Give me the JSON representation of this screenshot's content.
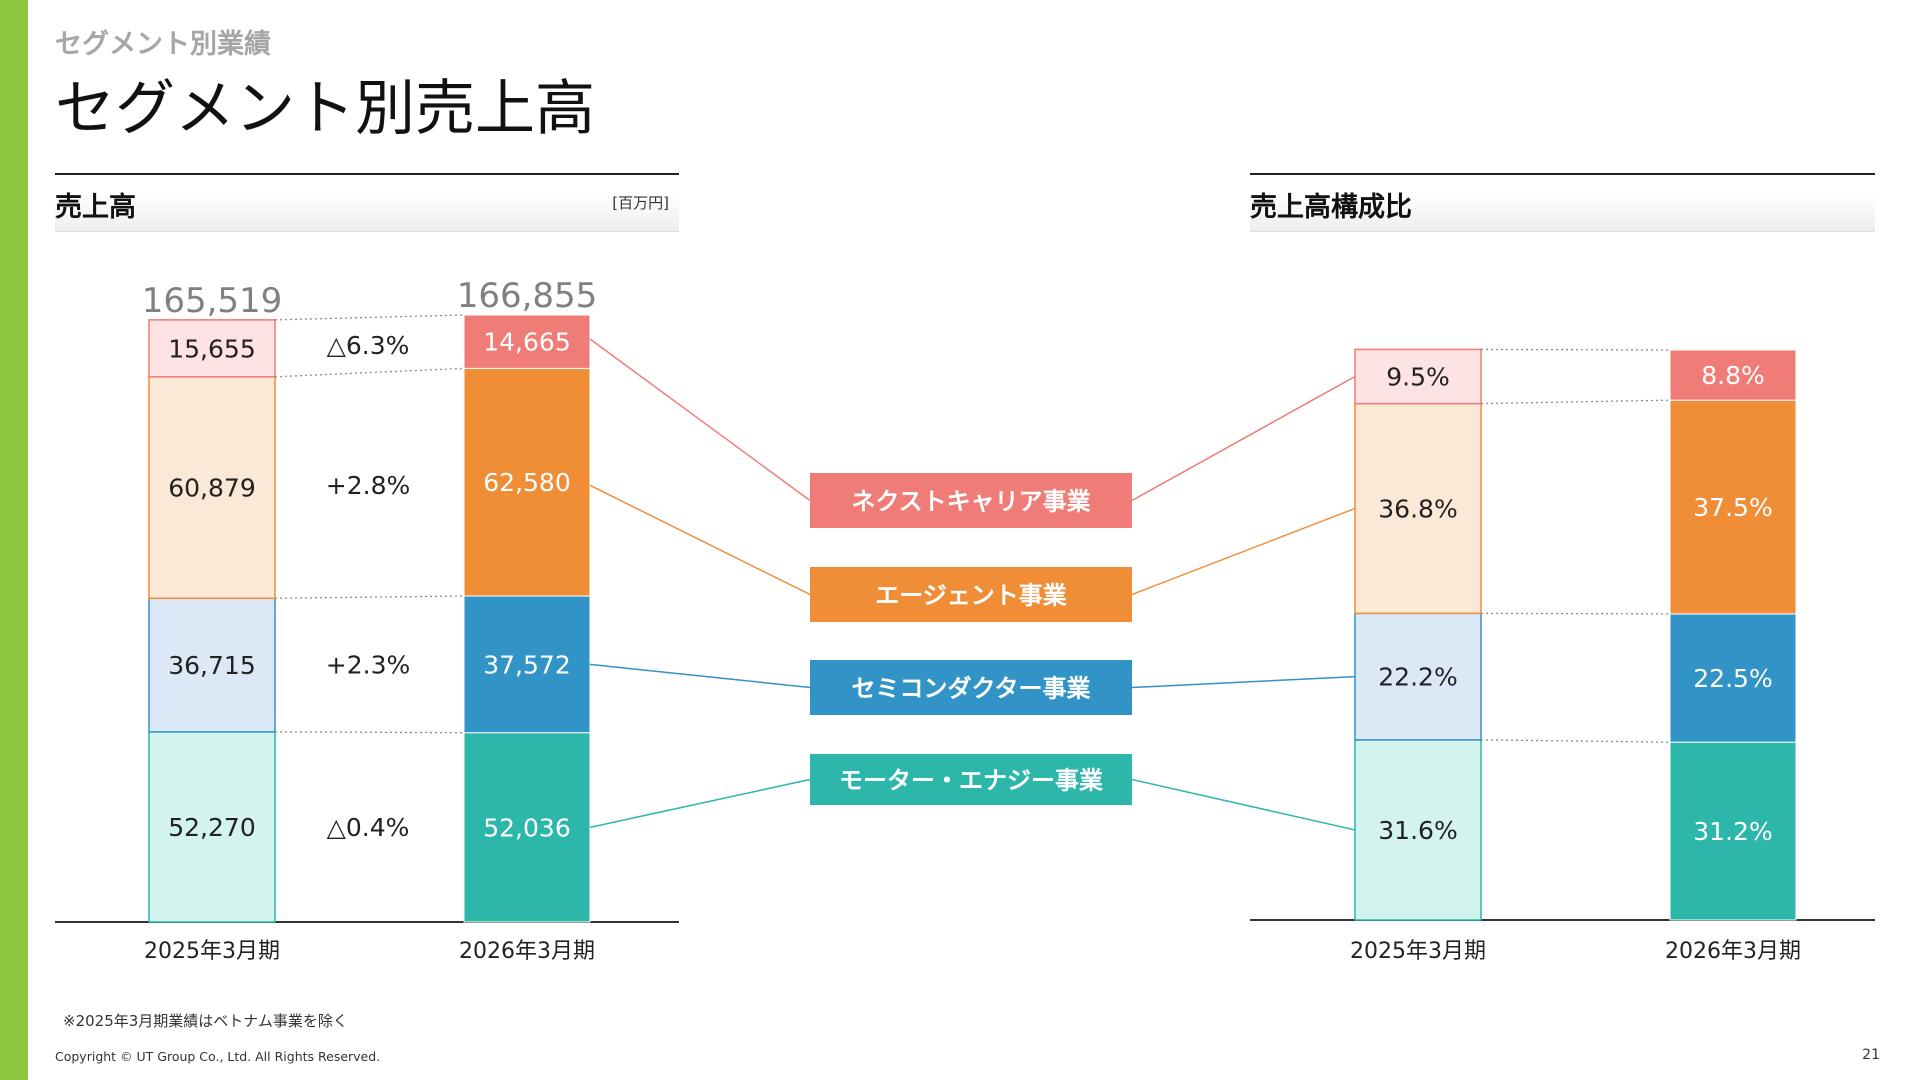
{
  "header": {
    "kicker": "セグメント別業績",
    "title": "セグメント別売上高"
  },
  "left_panel": {
    "title": "売上高",
    "unit": "[百万円]"
  },
  "right_panel": {
    "title": "売上高構成比"
  },
  "colors": {
    "accent": "#8dc63f",
    "next_career": "#ef7c76",
    "agent": "#f08e38",
    "semiconductor": "#3193c6",
    "motor_energy": "#2db6aa",
    "next_career_light": "#fde3e4",
    "agent_light": "#fce8d6",
    "semiconductor_light": "#dde8f6",
    "motor_energy_light": "#d3f3ef"
  },
  "chart_data": [
    {
      "type": "bar",
      "stacked": true,
      "categories": [
        "2025年3月期",
        "2026年3月期"
      ],
      "series": [
        {
          "name": "モーター・エナジー事業",
          "values": [
            52270,
            52036
          ],
          "labels": [
            "52,270",
            "52,036"
          ],
          "change": "△0.4%"
        },
        {
          "name": "セミコンダクター事業",
          "values": [
            36715,
            37572
          ],
          "labels": [
            "36,715",
            "37,572"
          ],
          "change": "+2.3%"
        },
        {
          "name": "エージェント事業",
          "values": [
            60879,
            62580
          ],
          "labels": [
            "60,879",
            "62,580"
          ],
          "change": "+2.8%"
        },
        {
          "name": "ネクストキャリア事業",
          "values": [
            15655,
            14665
          ],
          "labels": [
            "15,655",
            "14,665"
          ],
          "change": "△6.3%"
        }
      ],
      "totals": [
        165519,
        166855
      ],
      "total_labels": [
        "165,519",
        "166,855"
      ]
    },
    {
      "type": "bar",
      "stacked": true,
      "categories": [
        "2025年3月期",
        "2026年3月期"
      ],
      "series": [
        {
          "name": "モーター・エナジー事業",
          "values": [
            31.6,
            31.2
          ],
          "labels": [
            "31.6%",
            "31.2%"
          ]
        },
        {
          "name": "セミコンダクター事業",
          "values": [
            22.2,
            22.5
          ],
          "labels": [
            "22.2%",
            "22.5%"
          ]
        },
        {
          "name": "エージェント事業",
          "values": [
            36.8,
            37.5
          ],
          "labels": [
            "36.8%",
            "37.5%"
          ]
        },
        {
          "name": "ネクストキャリア事業",
          "values": [
            9.5,
            8.8
          ],
          "labels": [
            "9.5%",
            "8.8%"
          ]
        }
      ],
      "ylim": [
        0,
        100
      ]
    }
  ],
  "legend": [
    "ネクストキャリア事業",
    "エージェント事業",
    "セミコンダクター事業",
    "モーター・エナジー事業"
  ],
  "footnote": "※2025年3月期業績はベトナム事業を除く",
  "copyright": "Copyright © UT Group Co., Ltd. All Rights Reserved.",
  "page_number": "21"
}
